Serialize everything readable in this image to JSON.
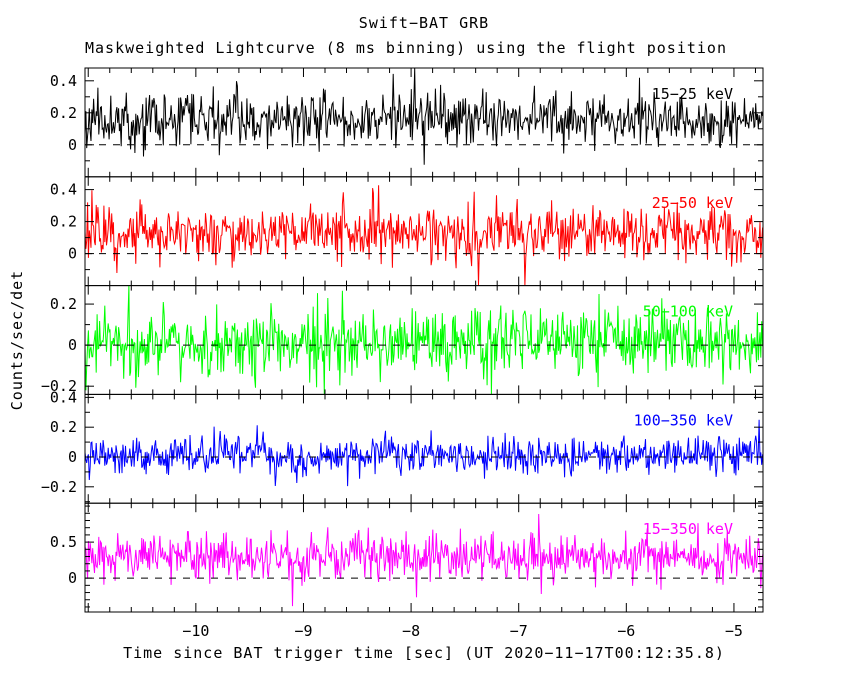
{
  "title": "Swift−BAT GRB",
  "subtitle": "Maskweighted Lightcurve (8 ms binning) using the flight position",
  "ylabel": "Counts/sec/det",
  "xlabel": "Time since BAT trigger time [sec] (UT 2020−11−17T00:12:35.8)",
  "chart_data": {
    "type": "line",
    "style": "stacked-panel noise lightcurves, histogram-like step traces",
    "title": "Swift−BAT GRB",
    "subtitle": "Maskweighted Lightcurve (8 ms binning) using the flight position",
    "xlabel": "Time since BAT trigger time [sec] (UT 2020−11−17T00:12:35.8)",
    "ylabel": "Counts/sec/det",
    "grid": false,
    "background": "#ffffff",
    "frame_color": "#000000",
    "xlim": [
      -11.03,
      -4.73
    ],
    "x_major_ticks": [
      -10,
      -9,
      -8,
      -7,
      -6,
      -5
    ],
    "x_minor_step": 0.2,
    "bin_seconds": 0.008,
    "zero_line": {
      "value": 0,
      "style": "dashed",
      "color": "#000000"
    },
    "panels": [
      {
        "label": "15−25 keV",
        "color": "#000000",
        "ylim": [
          -0.2,
          0.48
        ],
        "yticks": [
          0,
          0.2,
          0.4
        ],
        "y_minor_step": 0.1,
        "mean": 0.16,
        "sigma": 0.082,
        "seed": 11
      },
      {
        "label": "25−50 keV",
        "color": "#ff0000",
        "ylim": [
          -0.2,
          0.48
        ],
        "yticks": [
          0,
          0.2,
          0.4
        ],
        "y_minor_step": 0.1,
        "mean": 0.13,
        "sigma": 0.085,
        "seed": 22
      },
      {
        "label": "50−100 keV",
        "color": "#00ff00",
        "ylim": [
          -0.24,
          0.29
        ],
        "yticks": [
          -0.2,
          0,
          0.2
        ],
        "y_minor_step": 0.1,
        "mean": 0.01,
        "sigma": 0.085,
        "seed": 33
      },
      {
        "label": "100−350 keV",
        "color": "#0000ff",
        "ylim": [
          -0.31,
          0.42
        ],
        "yticks": [
          -0.2,
          0,
          0.2,
          0.4
        ],
        "y_minor_step": 0.1,
        "mean": 0.01,
        "sigma": 0.062,
        "seed": 44
      },
      {
        "label": "15−350 keV",
        "color": "#ff00ff",
        "ylim": [
          -0.47,
          1.04
        ],
        "yticks": [
          0,
          0.5
        ],
        "y_minor_step": 0.1,
        "mean": 0.29,
        "sigma": 0.16,
        "seed": 55
      }
    ]
  }
}
